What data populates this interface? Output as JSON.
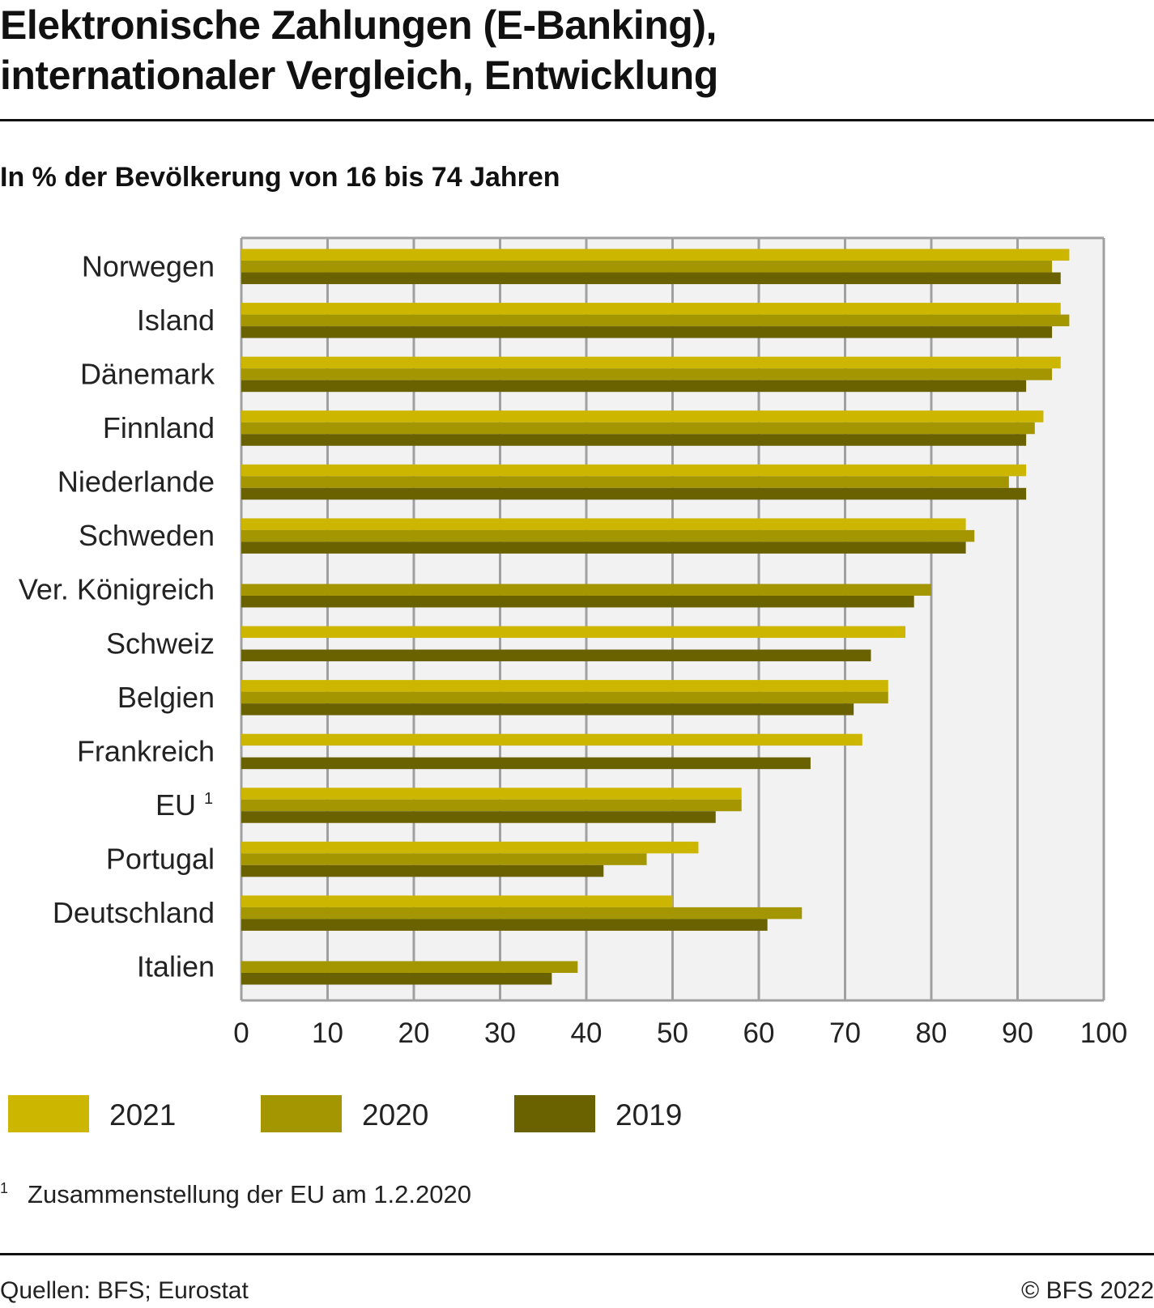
{
  "title_line1": "Elektronische Zahlungen (E-Banking),",
  "title_line2": "internationaler Vergleich, Entwicklung",
  "subtitle": "In % der Bevölkerung von 16 bis 74 Jahren",
  "footnote": {
    "mark": "1",
    "text": "Zusammenstellung der EU am 1.2.2020"
  },
  "source": "Quellen: BFS; Eurostat",
  "copyright": "© BFS 2022",
  "chart_data": {
    "type": "bar",
    "orientation": "horizontal",
    "categories": [
      "Norwegen",
      "Island",
      "Dänemark",
      "Finnland",
      "Niederlande",
      "Schweden",
      "Ver. Königreich",
      "Schweiz",
      "Belgien",
      "Frankreich",
      "EU 1",
      "Portugal",
      "Deutschland",
      "Italien"
    ],
    "series": [
      {
        "name": "2021",
        "color": "#ccb600",
        "values": [
          96,
          95,
          95,
          93,
          91,
          84,
          null,
          77,
          75,
          72,
          58,
          53,
          50,
          null
        ]
      },
      {
        "name": "2020",
        "color": "#a39600",
        "values": [
          94,
          96,
          94,
          92,
          89,
          85,
          80,
          null,
          75,
          null,
          58,
          47,
          65,
          39
        ]
      },
      {
        "name": "2019",
        "color": "#6a6200",
        "values": [
          95,
          94,
          91,
          91,
          91,
          84,
          78,
          73,
          71,
          66,
          55,
          42,
          61,
          36
        ]
      }
    ],
    "xlim": [
      0,
      100
    ],
    "xticks": [
      0,
      10,
      20,
      30,
      40,
      50,
      60,
      70,
      80,
      90,
      100
    ],
    "grid": true,
    "legend": "bottom"
  }
}
